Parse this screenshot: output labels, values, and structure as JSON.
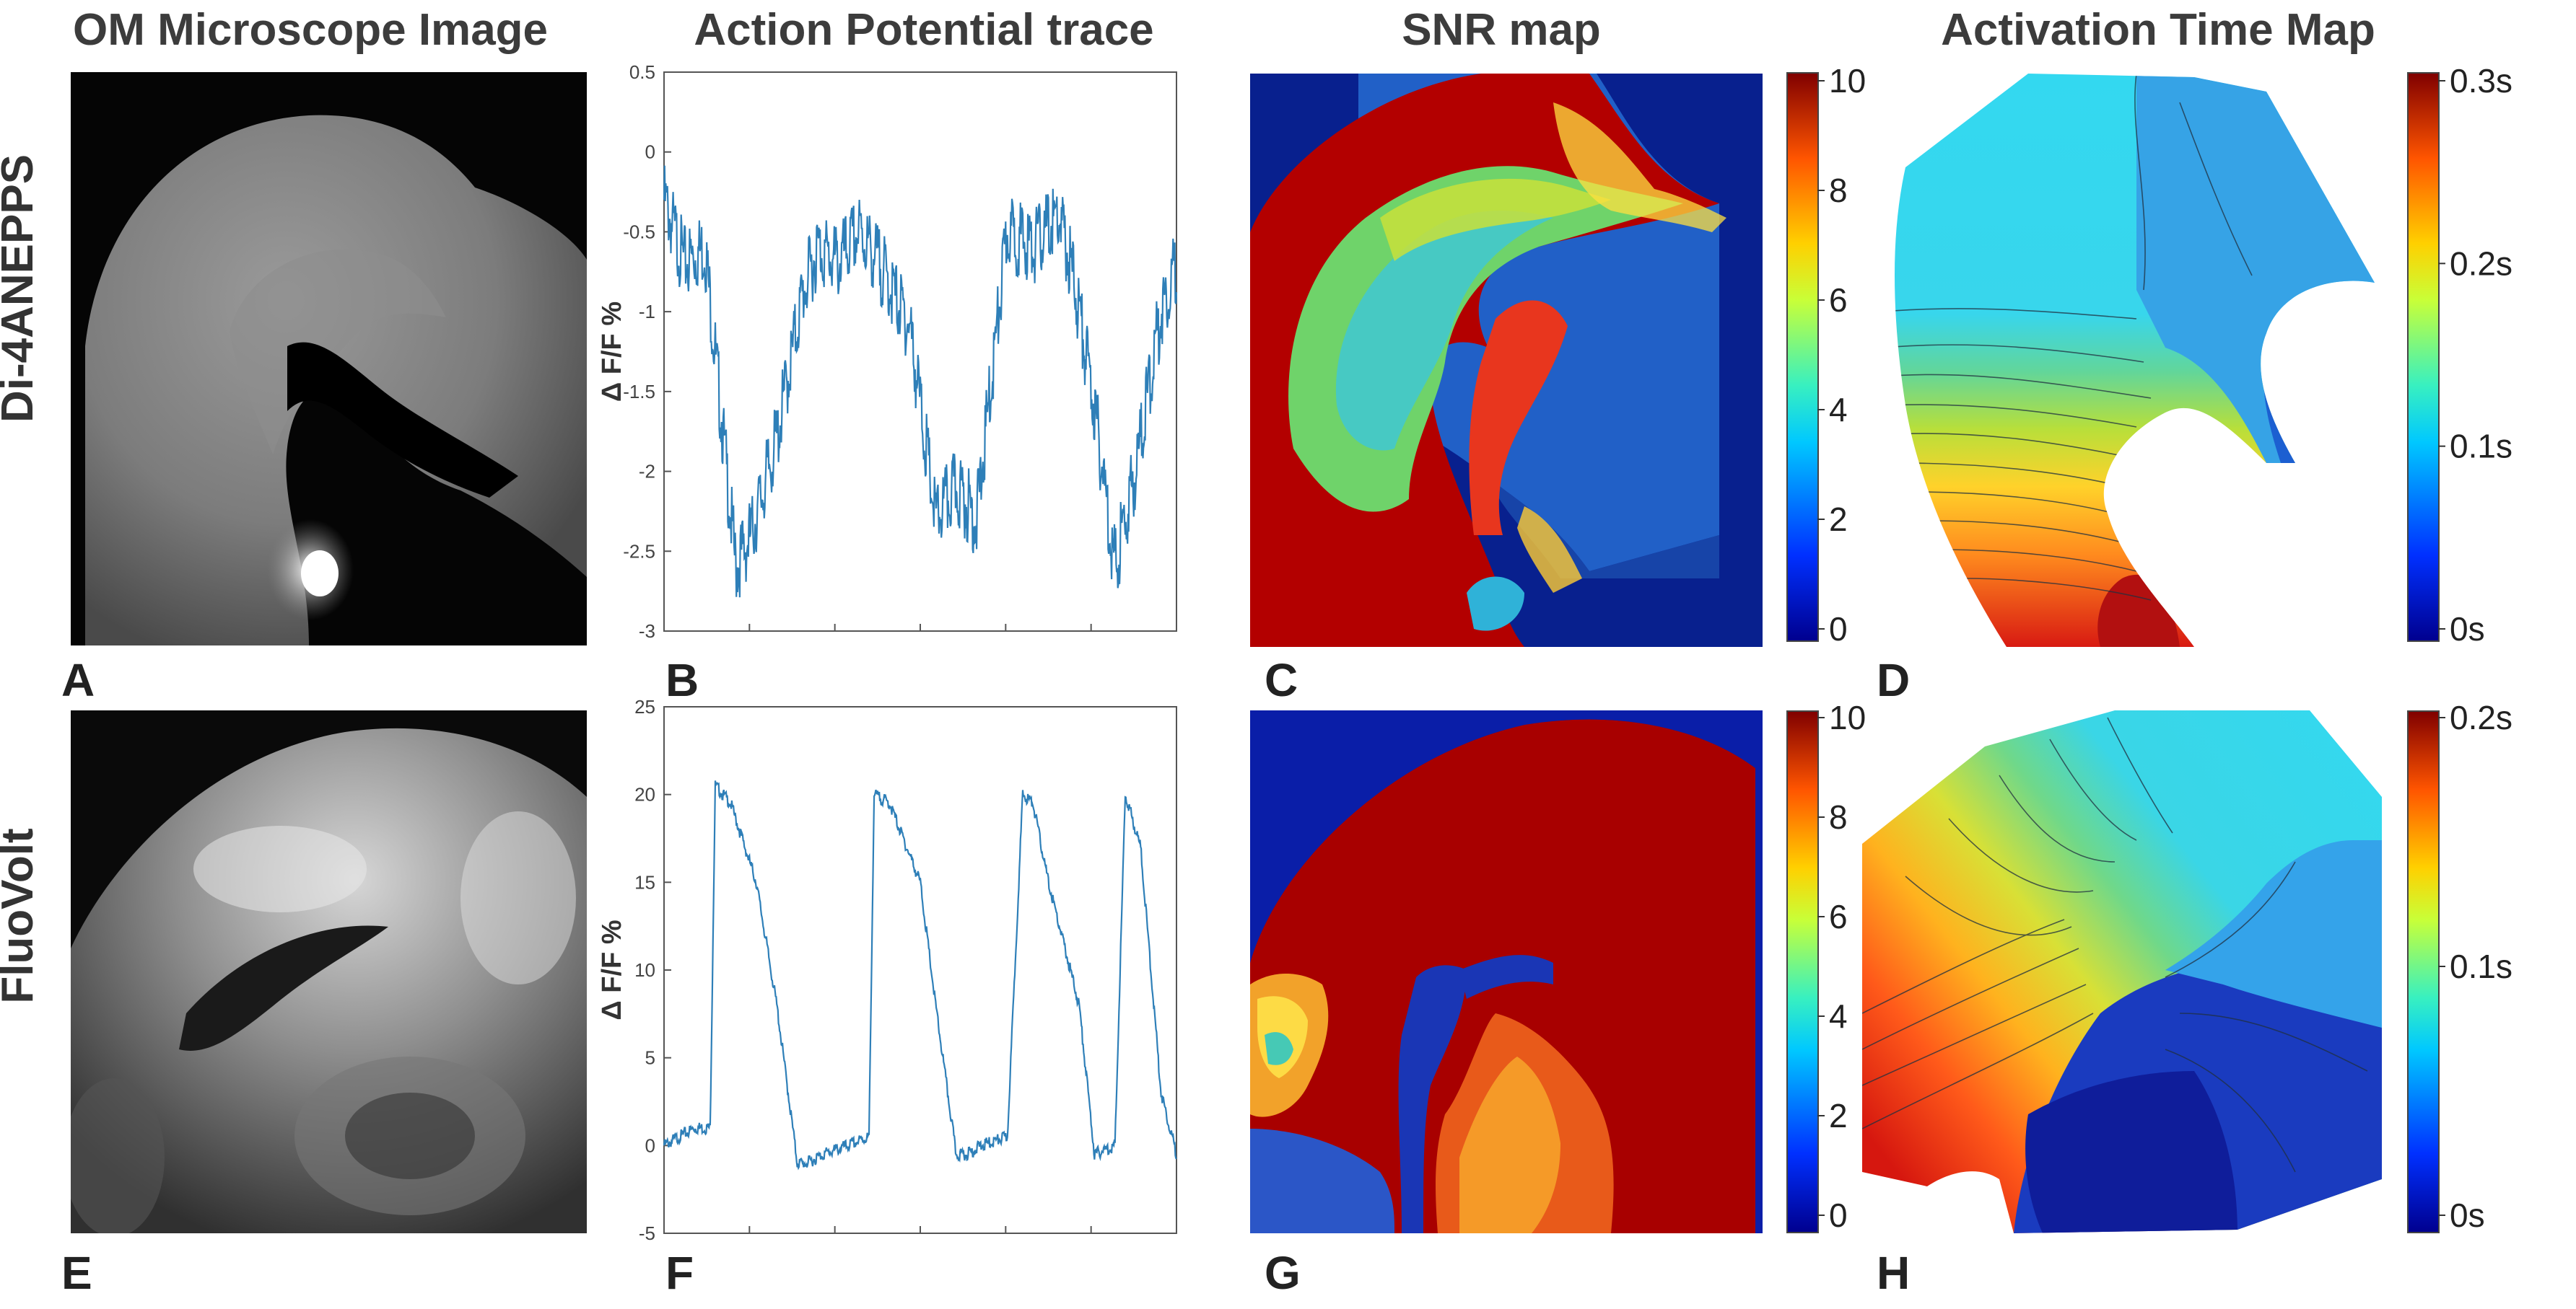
{
  "column_titles": {
    "om": "OM Microscope Image",
    "trace": "Action Potential trace",
    "snr": "SNR map",
    "activation": "Activation Time Map"
  },
  "row_labels": {
    "top": "Di-4ANEPPS",
    "bottom": "FluoVolt"
  },
  "panel_letters": [
    "A",
    "B",
    "C",
    "D",
    "E",
    "F",
    "G",
    "H"
  ],
  "chart_data": [
    {
      "panel": "B",
      "type": "line",
      "title": "Action Potential trace",
      "ylabel": "Δ F/F %",
      "xlabel": "",
      "ylim": [
        -3,
        0.5
      ],
      "yticks": [
        "0.5",
        "0",
        "-0.5",
        "-1",
        "-1.5",
        "-2",
        "-2.5",
        "-3"
      ],
      "ytick_values": [
        0.5,
        0,
        -0.5,
        -1,
        -1.5,
        -2,
        -2.5,
        -3
      ],
      "series": [
        {
          "name": "Di-4ANEPPS trace",
          "color": "#2e7fb8",
          "x": [
            0,
            0.04,
            0.08,
            0.11,
            0.14,
            0.17,
            0.22,
            0.27,
            0.3,
            0.34,
            0.38,
            0.42,
            0.48,
            0.53,
            0.57,
            0.61,
            0.64,
            0.67,
            0.72,
            0.77,
            0.8,
            0.84,
            0.88,
            0.92,
            0.97,
            1.0
          ],
          "values": [
            -0.3,
            -0.7,
            -0.6,
            -1.6,
            -2.6,
            -2.4,
            -1.8,
            -0.9,
            -0.6,
            -0.7,
            -0.5,
            -0.7,
            -1.1,
            -2.3,
            -2.1,
            -2.3,
            -1.4,
            -0.5,
            -0.6,
            -0.4,
            -0.8,
            -1.6,
            -2.6,
            -2.0,
            -1.0,
            -0.7
          ]
        }
      ]
    },
    {
      "panel": "F",
      "type": "line",
      "title": "Action Potential trace",
      "ylabel": "Δ F/F %",
      "xlabel": "",
      "ylim": [
        -5,
        25
      ],
      "yticks": [
        "25",
        "20",
        "15",
        "10",
        "5",
        "0",
        "-5"
      ],
      "ytick_values": [
        25,
        20,
        15,
        10,
        5,
        0,
        -5
      ],
      "series": [
        {
          "name": "FluoVolt trace",
          "color": "#2e7fb8",
          "x": [
            0,
            0.06,
            0.09,
            0.1,
            0.13,
            0.18,
            0.22,
            0.26,
            0.28,
            0.31,
            0.36,
            0.4,
            0.41,
            0.44,
            0.5,
            0.53,
            0.57,
            0.59,
            0.62,
            0.67,
            0.7,
            0.72,
            0.75,
            0.81,
            0.84,
            0.88,
            0.9,
            0.93,
            0.97,
            1.0
          ],
          "values": [
            0,
            1,
            1,
            20.5,
            19.5,
            15,
            8,
            -1,
            -1,
            -0.5,
            0,
            0.5,
            20,
            19.5,
            15,
            8,
            -0.5,
            -0.5,
            0,
            0.5,
            20,
            19.5,
            15,
            8,
            -0.5,
            0,
            20,
            17,
            3,
            -0.5
          ]
        }
      ]
    },
    {
      "panel": "C",
      "type": "heatmap",
      "title": "SNR map",
      "colorbar": {
        "ticks": [
          "10",
          "8",
          "6",
          "4",
          "2",
          "0"
        ],
        "range": [
          0,
          10
        ]
      }
    },
    {
      "panel": "G",
      "type": "heatmap",
      "title": "SNR map",
      "colorbar": {
        "ticks": [
          "10",
          "8",
          "6",
          "4",
          "2",
          "0"
        ],
        "range": [
          0,
          10
        ]
      }
    },
    {
      "panel": "D",
      "type": "heatmap",
      "title": "Activation Time Map",
      "colorbar": {
        "ticks": [
          "0.3s",
          "0.2s",
          "0.1s",
          "0s"
        ],
        "range": [
          0,
          0.3
        ],
        "unit": "s"
      }
    },
    {
      "panel": "H",
      "type": "heatmap",
      "title": "Activation Time Map",
      "colorbar": {
        "ticks": [
          "0.2s",
          "0.1s",
          "0s"
        ],
        "range": [
          0,
          0.2
        ],
        "unit": "s"
      }
    }
  ]
}
